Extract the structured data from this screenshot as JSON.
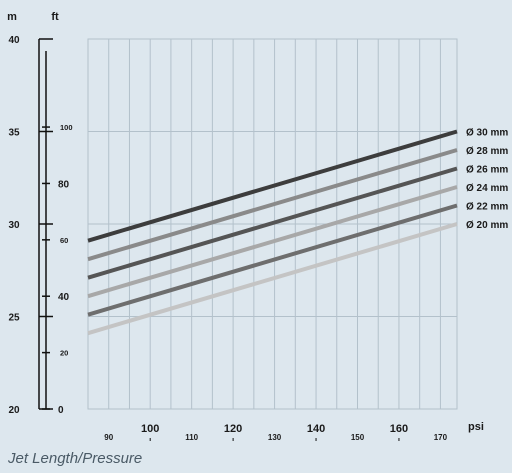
{
  "caption": "Jet Length/Pressure",
  "chart_data": {
    "type": "line",
    "x_unit": "psi",
    "y_unit_left": "m",
    "y_unit_inner": "ft",
    "xlim": [
      85,
      174
    ],
    "ylim": [
      20,
      40
    ],
    "x_ticks_major": [
      100,
      120,
      140,
      160
    ],
    "x_ticks_minor": [
      90,
      110,
      130,
      150,
      170
    ],
    "grid_x": [
      85,
      90,
      95,
      100,
      105,
      110,
      115,
      120,
      125,
      130,
      135,
      140,
      145,
      150,
      155,
      160,
      165,
      170,
      174
    ],
    "grid_y": [
      25,
      30,
      35
    ],
    "y_ticks_m": [
      20,
      25,
      30,
      35,
      40
    ],
    "y_ticks_ft": [
      0,
      20,
      40,
      60,
      80,
      100
    ],
    "y_ticks_ft_major": [
      0,
      40,
      80
    ],
    "series": [
      {
        "name": "Ø 30 mm",
        "color": "#3d3d3d",
        "x": [
          85,
          174
        ],
        "y": [
          29.1,
          35.0
        ]
      },
      {
        "name": "Ø 28 mm",
        "color": "#8a8a8a",
        "x": [
          85,
          174
        ],
        "y": [
          28.1,
          34.0
        ]
      },
      {
        "name": "Ø 26 mm",
        "color": "#555555",
        "x": [
          85,
          174
        ],
        "y": [
          27.1,
          33.0
        ]
      },
      {
        "name": "Ø 24 mm",
        "color": "#a8a8a8",
        "x": [
          85,
          174
        ],
        "y": [
          26.1,
          32.0
        ]
      },
      {
        "name": "Ø 22 mm",
        "color": "#6e6e6e",
        "x": [
          85,
          174
        ],
        "y": [
          25.1,
          31.0
        ]
      },
      {
        "name": "Ø 20 mm",
        "color": "#c4c4c4",
        "x": [
          85,
          174
        ],
        "y": [
          24.1,
          30.0
        ]
      }
    ]
  }
}
